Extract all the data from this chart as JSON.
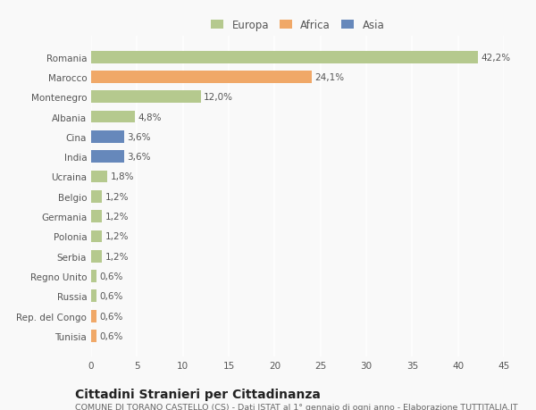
{
  "countries": [
    "Romania",
    "Marocco",
    "Montenegro",
    "Albania",
    "Cina",
    "India",
    "Ucraina",
    "Belgio",
    "Germania",
    "Polonia",
    "Serbia",
    "Regno Unito",
    "Russia",
    "Rep. del Congo",
    "Tunisia"
  ],
  "values": [
    42.2,
    24.1,
    12.0,
    4.8,
    3.6,
    3.6,
    1.8,
    1.2,
    1.2,
    1.2,
    1.2,
    0.6,
    0.6,
    0.6,
    0.6
  ],
  "labels": [
    "42,2%",
    "24,1%",
    "12,0%",
    "4,8%",
    "3,6%",
    "3,6%",
    "1,8%",
    "1,2%",
    "1,2%",
    "1,2%",
    "1,2%",
    "0,6%",
    "0,6%",
    "0,6%",
    "0,6%"
  ],
  "continents": [
    "Europa",
    "Africa",
    "Europa",
    "Europa",
    "Asia",
    "Asia",
    "Europa",
    "Europa",
    "Europa",
    "Europa",
    "Europa",
    "Europa",
    "Europa",
    "Africa",
    "Africa"
  ],
  "colors": {
    "Europa": "#b5c98e",
    "Africa": "#f0a868",
    "Asia": "#6688bb"
  },
  "background_color": "#f9f9f9",
  "grid_color": "#ffffff",
  "title": "Cittadini Stranieri per Cittadinanza",
  "subtitle": "COMUNE DI TORANO CASTELLO (CS) - Dati ISTAT al 1° gennaio di ogni anno - Elaborazione TUTTITALIA.IT",
  "xlim": [
    0,
    45
  ],
  "xticks": [
    0,
    5,
    10,
    15,
    20,
    25,
    30,
    35,
    40,
    45
  ],
  "bar_height": 0.62,
  "label_fontsize": 7.5,
  "tick_fontsize": 7.5,
  "title_fontsize": 10,
  "subtitle_fontsize": 6.8,
  "legend_fontsize": 8.5
}
